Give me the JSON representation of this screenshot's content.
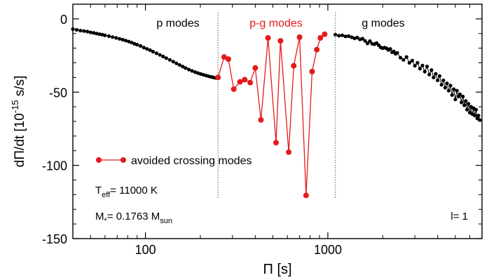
{
  "chart_data": {
    "type": "line",
    "x_scale": "log",
    "xlabel": "Π [s]",
    "ylabel": "dΠ/dt [10^-15 s/s]",
    "ylabel_parts": {
      "main": "dΠ/dt [10",
      "exp": "-15",
      "unit": " s/s]"
    },
    "xlim": [
      40,
      7000
    ],
    "ylim": [
      -150,
      10
    ],
    "x_ticks": [
      100,
      1000
    ],
    "x_tick_labels": [
      "100",
      "1000"
    ],
    "y_ticks": [
      -150,
      -100,
      -50,
      0
    ],
    "y_tick_labels": [
      "-150",
      "-100",
      "-50",
      "0"
    ],
    "grid": false,
    "legend_position": "lower-left",
    "region_boundaries": [
      250,
      1100
    ],
    "region_labels": [
      {
        "text": "p modes",
        "color": "#000000"
      },
      {
        "text": "p-g modes",
        "color": "#e41a1c"
      },
      {
        "text": "g modes",
        "color": "#000000"
      }
    ],
    "annotations": {
      "teff": {
        "main": "T",
        "sub": "eff",
        "rest": "= 11000 K"
      },
      "mass": {
        "main": "M",
        "sub": "*",
        "rest": "= 0.1763 M",
        "sub2": "sun"
      },
      "l": "l= 1"
    },
    "series": [
      {
        "style": "black-dots",
        "color": "#000000",
        "x": [
          40,
          42,
          44,
          46,
          48,
          50,
          52,
          54,
          56,
          58,
          60,
          63,
          66,
          69,
          72,
          75,
          78,
          81,
          84,
          87,
          90,
          94,
          98,
          102,
          106,
          110,
          115,
          120,
          125,
          130,
          136,
          142,
          148,
          154,
          160,
          166,
          173,
          180,
          187,
          194,
          201,
          208,
          215,
          222,
          229,
          236,
          243,
          250
        ],
        "y": [
          -7,
          -7.5,
          -8,
          -8.3,
          -8.7,
          -9.2,
          -9.6,
          -10,
          -10.4,
          -10.8,
          -11.2,
          -11.8,
          -12.4,
          -13,
          -13.6,
          -14.2,
          -14.8,
          -15.5,
          -16.2,
          -17,
          -17.6,
          -18.5,
          -19.6,
          -20.5,
          -21.4,
          -22.4,
          -23.5,
          -24.6,
          -25.7,
          -26.8,
          -28,
          -29.2,
          -30.4,
          -31.5,
          -32.6,
          -33.6,
          -34.6,
          -35.5,
          -36.3,
          -37,
          -37.6,
          -38.2,
          -38.7,
          -39.2,
          -39.6,
          -40,
          -40.3,
          -40.5
        ]
      },
      {
        "name": "avoided crossing modes",
        "style": "red-line-dots",
        "color": "#e41a1c",
        "x": [
          250,
          270,
          285,
          305,
          330,
          350,
          375,
          400,
          430,
          470,
          520,
          550,
          610,
          650,
          700,
          760,
          820,
          870,
          910,
          960
        ],
        "y": [
          -40,
          -26,
          -27.5,
          -48,
          -43,
          -41.5,
          -43.5,
          -33.5,
          -69,
          -13,
          -84.5,
          -15,
          -91,
          -32,
          -12.5,
          -120.5,
          -36,
          -21,
          -13,
          -10.5
        ]
      },
      {
        "style": "black-dots",
        "color": "#000000",
        "x": [
          1100,
          1150,
          1200,
          1250,
          1300,
          1350,
          1400,
          1450,
          1500,
          1550,
          1600,
          1650,
          1700,
          1750,
          1800,
          1850,
          1900,
          1950,
          2000,
          2050,
          2100,
          2150,
          2200,
          2250,
          2300,
          2350,
          2400,
          2500,
          2600,
          2700,
          2800,
          2900,
          3000,
          3100,
          3200,
          3300,
          3400,
          3500,
          3600,
          3700,
          3800,
          3900,
          4000,
          4100,
          4200,
          4300,
          4400,
          4500,
          4600,
          4700,
          4800,
          4900,
          5000,
          5100,
          5200,
          5300,
          5400,
          5500,
          5600,
          5700,
          5800,
          5900,
          6000,
          6100,
          6200,
          6300,
          6400,
          6500,
          6600,
          6700,
          6800
        ],
        "y": [
          -10.8,
          -11.5,
          -11.2,
          -12,
          -11.8,
          -12.5,
          -13.3,
          -12.8,
          -14,
          -13.5,
          -15,
          -16.8,
          -15.2,
          -17,
          -17.3,
          -16.5,
          -18,
          -19.5,
          -20,
          -19.6,
          -20.2,
          -21.2,
          -20.5,
          -22.8,
          -22.3,
          -23.8,
          -23.2,
          -26.5,
          -28,
          -26,
          -30,
          -28.5,
          -32,
          -30,
          -34,
          -31.8,
          -36,
          -32.5,
          -38,
          -35,
          -40,
          -37.5,
          -42,
          -39,
          -45,
          -42,
          -47,
          -44,
          -49,
          -45.5,
          -52,
          -48,
          -55,
          -49,
          -53,
          -51.5,
          -57,
          -53,
          -59,
          -56,
          -62,
          -58,
          -64,
          -60,
          -65,
          -61,
          -66,
          -62,
          -68,
          -66,
          -69
        ]
      }
    ]
  }
}
